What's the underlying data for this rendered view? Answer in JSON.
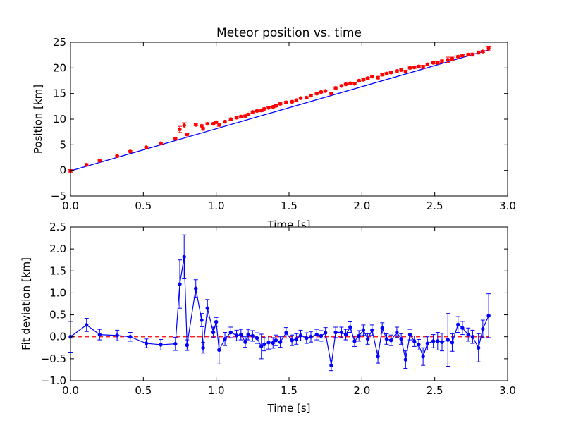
{
  "chart_data": [
    {
      "type": "scatter",
      "title": "Meteor position vs. time",
      "xlabel": "Time [s]",
      "ylabel": "Position [km]",
      "xlim": [
        0,
        3
      ],
      "ylim": [
        -5,
        25
      ],
      "xticks": [
        "0.0",
        "0.5",
        "1.0",
        "1.5",
        "2.0",
        "2.5",
        "3.0"
      ],
      "yticks": [
        "−5",
        "0",
        "5",
        "10",
        "15",
        "20",
        "25"
      ],
      "grid": false,
      "colors": {
        "points": "#ff0000",
        "fit": "#0000ff"
      },
      "fit_line": {
        "x": [
          0.0,
          2.87
        ],
        "y": [
          -0.1,
          23.5
        ]
      },
      "points": {
        "x": [
          0.0,
          0.11,
          0.2,
          0.32,
          0.41,
          0.52,
          0.62,
          0.72,
          0.75,
          0.78,
          0.8,
          0.86,
          0.9,
          0.91,
          0.94,
          0.98,
          1.0,
          1.02,
          1.06,
          1.1,
          1.14,
          1.17,
          1.2,
          1.22,
          1.25,
          1.28,
          1.31,
          1.33,
          1.36,
          1.39,
          1.41,
          1.44,
          1.48,
          1.52,
          1.55,
          1.58,
          1.62,
          1.65,
          1.69,
          1.72,
          1.75,
          1.79,
          1.82,
          1.86,
          1.89,
          1.92,
          1.95,
          1.98,
          2.01,
          2.04,
          2.07,
          2.11,
          2.14,
          2.17,
          2.2,
          2.24,
          2.27,
          2.3,
          2.33,
          2.36,
          2.39,
          2.42,
          2.45,
          2.49,
          2.52,
          2.55,
          2.59,
          2.62,
          2.66,
          2.69,
          2.73,
          2.76,
          2.8,
          2.83,
          2.87
        ],
        "y": [
          -0.1,
          1.1,
          1.9,
          2.8,
          3.7,
          4.5,
          5.3,
          6.2,
          8.0,
          8.8,
          7.0,
          8.9,
          8.7,
          8.1,
          9.1,
          9.1,
          9.4,
          8.9,
          9.5,
          10.0,
          10.3,
          10.5,
          10.6,
          10.9,
          11.4,
          11.6,
          11.7,
          12.0,
          12.2,
          12.4,
          12.6,
          13.0,
          13.3,
          13.4,
          13.7,
          14.1,
          14.2,
          14.6,
          15.0,
          15.3,
          15.5,
          15.0,
          16.1,
          16.5,
          16.8,
          17.0,
          16.9,
          17.5,
          17.7,
          18.0,
          18.3,
          18.1,
          18.7,
          18.9,
          19.1,
          19.4,
          19.6,
          19.3,
          20.0,
          20.1,
          20.3,
          20.2,
          20.7,
          21.0,
          21.0,
          21.3,
          21.6,
          21.8,
          22.2,
          22.4,
          22.6,
          22.6,
          23.0,
          23.2,
          23.8
        ],
        "err": [
          0.25,
          0.2,
          0.15,
          0.15,
          0.15,
          0.15,
          0.15,
          0.2,
          0.6,
          0.5,
          0.2,
          0.2,
          0.2,
          0.25,
          0.2,
          0.2,
          0.2,
          0.3,
          0.2,
          0.2,
          0.2,
          0.2,
          0.2,
          0.2,
          0.2,
          0.2,
          0.25,
          0.2,
          0.2,
          0.2,
          0.2,
          0.2,
          0.2,
          0.2,
          0.2,
          0.2,
          0.2,
          0.2,
          0.2,
          0.2,
          0.2,
          0.2,
          0.2,
          0.2,
          0.2,
          0.2,
          0.2,
          0.2,
          0.2,
          0.2,
          0.2,
          0.25,
          0.2,
          0.2,
          0.2,
          0.2,
          0.2,
          0.25,
          0.2,
          0.2,
          0.2,
          0.3,
          0.2,
          0.2,
          0.2,
          0.25,
          0.5,
          0.3,
          0.2,
          0.2,
          0.2,
          0.3,
          0.3,
          0.2,
          0.45
        ]
      }
    },
    {
      "type": "line",
      "xlabel": "Time [s]",
      "ylabel": "Fit deviation [km]",
      "xlim": [
        0,
        3
      ],
      "ylim": [
        -1.0,
        2.5
      ],
      "xticks": [
        "0.0",
        "0.5",
        "1.0",
        "1.5",
        "2.0",
        "2.5",
        "3.0"
      ],
      "yticks": [
        "−1.0",
        "−0.5",
        "0.0",
        "0.5",
        "1.0",
        "1.5",
        "2.0",
        "2.5"
      ],
      "grid": false,
      "colors": {
        "series": "#0000ff",
        "zero_line": "#ff0000"
      },
      "zero_line": {
        "x": [
          0.0,
          2.87
        ],
        "y": [
          0.0,
          0.0
        ],
        "style": "dashed"
      },
      "series": {
        "x": [
          0.0,
          0.11,
          0.2,
          0.32,
          0.41,
          0.52,
          0.62,
          0.72,
          0.75,
          0.78,
          0.8,
          0.86,
          0.9,
          0.91,
          0.94,
          0.98,
          1.0,
          1.02,
          1.06,
          1.1,
          1.14,
          1.17,
          1.2,
          1.22,
          1.25,
          1.28,
          1.31,
          1.33,
          1.36,
          1.39,
          1.41,
          1.44,
          1.48,
          1.52,
          1.55,
          1.58,
          1.62,
          1.65,
          1.69,
          1.72,
          1.75,
          1.79,
          1.82,
          1.86,
          1.89,
          1.92,
          1.95,
          1.98,
          2.01,
          2.04,
          2.07,
          2.11,
          2.14,
          2.17,
          2.2,
          2.24,
          2.27,
          2.3,
          2.33,
          2.36,
          2.39,
          2.42,
          2.45,
          2.49,
          2.52,
          2.55,
          2.59,
          2.62,
          2.66,
          2.69,
          2.73,
          2.76,
          2.8,
          2.83,
          2.87
        ],
        "y": [
          0.0,
          0.27,
          0.05,
          0.03,
          0.0,
          -0.15,
          -0.18,
          -0.16,
          1.2,
          1.82,
          -0.19,
          1.1,
          0.38,
          -0.25,
          0.65,
          0.1,
          0.34,
          -0.3,
          -0.05,
          0.1,
          0.03,
          0.05,
          -0.12,
          0.05,
          0.02,
          -0.03,
          -0.22,
          -0.17,
          -0.13,
          -0.14,
          -0.08,
          -0.12,
          0.09,
          -0.08,
          -0.05,
          0.03,
          -0.03,
          0.0,
          0.05,
          0.02,
          0.09,
          -0.65,
          0.1,
          0.1,
          0.05,
          0.22,
          -0.1,
          0.02,
          0.15,
          -0.05,
          0.15,
          -0.45,
          0.2,
          -0.05,
          -0.08,
          0.1,
          -0.05,
          -0.52,
          0.05,
          -0.1,
          -0.18,
          -0.45,
          -0.15,
          -0.1,
          -0.1,
          -0.12,
          -0.07,
          -0.13,
          0.28,
          0.2,
          0.05,
          0.0,
          -0.25,
          0.18,
          0.48
        ],
        "err": [
          0.35,
          0.15,
          0.12,
          0.12,
          0.1,
          0.1,
          0.12,
          0.15,
          0.55,
          0.5,
          0.12,
          0.2,
          0.15,
          0.12,
          0.2,
          0.12,
          0.1,
          0.32,
          0.15,
          0.12,
          0.12,
          0.12,
          0.12,
          0.12,
          0.12,
          0.12,
          0.28,
          0.15,
          0.15,
          0.12,
          0.12,
          0.12,
          0.12,
          0.12,
          0.12,
          0.12,
          0.12,
          0.12,
          0.12,
          0.12,
          0.12,
          0.12,
          0.12,
          0.12,
          0.12,
          0.12,
          0.12,
          0.12,
          0.12,
          0.12,
          0.12,
          0.15,
          0.12,
          0.12,
          0.12,
          0.12,
          0.12,
          0.2,
          0.12,
          0.12,
          0.12,
          0.2,
          0.15,
          0.15,
          0.2,
          0.2,
          0.6,
          0.2,
          0.18,
          0.15,
          0.15,
          0.15,
          0.32,
          0.2,
          0.5
        ]
      }
    }
  ]
}
